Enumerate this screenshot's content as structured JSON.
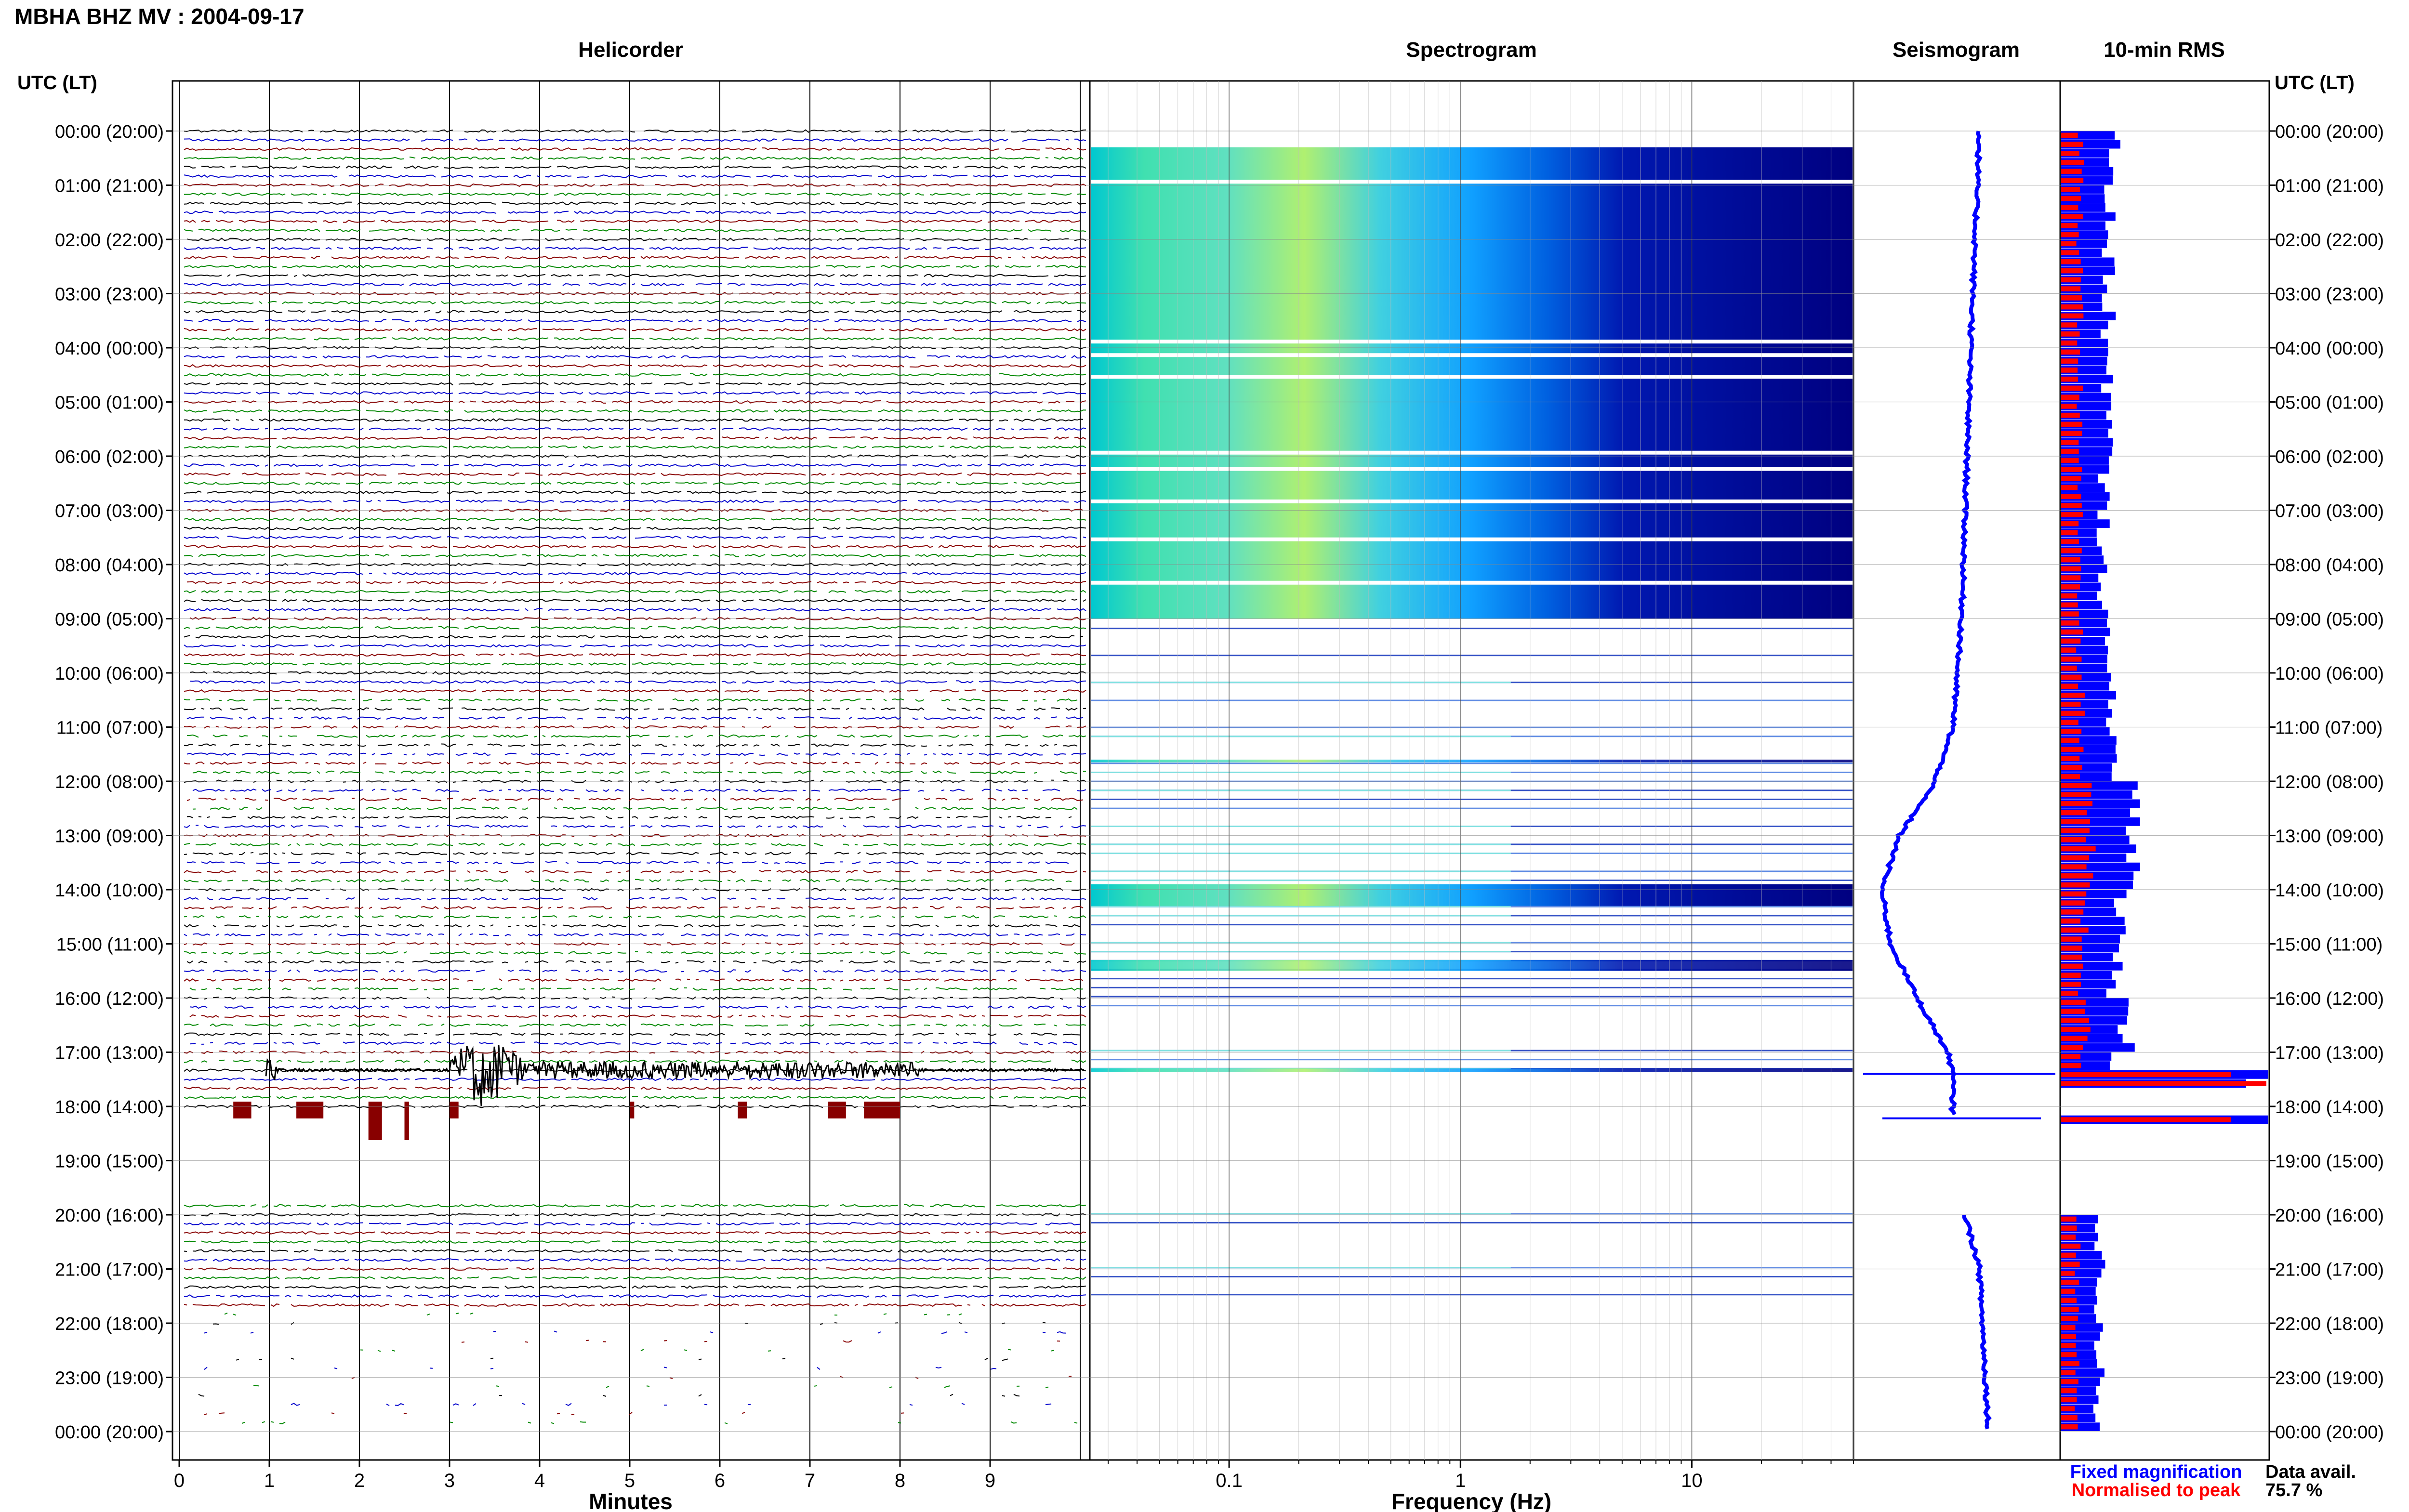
{
  "header": {
    "title": "MBHA BHZ MV : 2004-09-17",
    "axis_label_left": "UTC (LT)",
    "axis_label_right": "UTC (LT)"
  },
  "panels": {
    "helicorder": "Helicorder",
    "spectrogram": "Spectrogram",
    "seismogram": "Seismogram",
    "rms": "10-min RMS"
  },
  "time_labels": [
    "00:00 (20:00)",
    "01:00 (21:00)",
    "02:00 (22:00)",
    "03:00 (23:00)",
    "04:00 (00:00)",
    "05:00 (01:00)",
    "06:00 (02:00)",
    "07:00 (03:00)",
    "08:00 (04:00)",
    "09:00 (05:00)",
    "10:00 (06:00)",
    "11:00 (07:00)",
    "12:00 (08:00)",
    "13:00 (09:00)",
    "14:00 (10:00)",
    "15:00 (11:00)",
    "16:00 (12:00)",
    "17:00 (13:00)",
    "18:00 (14:00)",
    "19:00 (15:00)",
    "20:00 (16:00)",
    "21:00 (17:00)",
    "22:00 (18:00)",
    "23:00 (19:00)",
    "00:00 (20:00)"
  ],
  "helicorder_axis": {
    "xlabel": "Minutes",
    "ticks": [
      "0",
      "1",
      "2",
      "3",
      "4",
      "5",
      "6",
      "7",
      "8",
      "9"
    ]
  },
  "spectrogram_axis": {
    "xlabel": "Frequency (Hz)",
    "ticks": [
      "0.1",
      "1",
      "10"
    ]
  },
  "legend": {
    "fixed": "Fixed magnification",
    "normalised": "Normalised to peak",
    "avail_label": "Data avail.",
    "avail_value": "75.7 %"
  },
  "colors": {
    "trace_cycle": [
      "#000000",
      "#0000cc",
      "#880000",
      "#008800"
    ],
    "fixed": "#0000ff",
    "normalised": "#ff0000"
  },
  "chart_data": [
    {
      "type": "line",
      "title": "Helicorder",
      "xlabel": "Minutes",
      "xlim": [
        0,
        10
      ],
      "rows": 144,
      "row_duration_min": 10,
      "event_window_utc": [
        "17:20",
        "18:10"
      ],
      "gap_window_utc": [
        "18:10",
        "19:50"
      ]
    },
    {
      "type": "heatmap",
      "title": "Spectrogram",
      "xlabel": "Frequency (Hz)",
      "x_scale": "log",
      "xlim": [
        0.025,
        50
      ],
      "dense_data_hours_utc": [
        [
          0.3,
          9.0
        ],
        [
          13.9,
          14.3
        ]
      ]
    },
    {
      "type": "line",
      "title": "Seismogram",
      "description_series": "long-period trend",
      "points": [
        [
          0.0,
          0.6
        ],
        [
          4.0,
          0.55
        ],
        [
          9.0,
          0.5
        ],
        [
          11.0,
          0.45
        ],
        [
          12.0,
          0.35
        ],
        [
          13.0,
          0.15
        ],
        [
          14.0,
          0.05
        ],
        [
          15.0,
          0.1
        ],
        [
          16.0,
          0.25
        ],
        [
          17.0,
          0.42
        ],
        [
          17.35,
          0.45
        ],
        [
          18.1,
          0.45
        ],
        [
          20.0,
          0.52
        ],
        [
          21.0,
          0.6
        ],
        [
          24.0,
          0.65
        ]
      ]
    },
    {
      "type": "bar",
      "title": "10-min RMS",
      "series": [
        {
          "name": "Fixed magnification",
          "color": "#0000ff"
        },
        {
          "name": "Normalised to peak",
          "color": "#ff0000"
        }
      ],
      "hours_utc": [
        0,
        1,
        2,
        3,
        4,
        5,
        6,
        7,
        8,
        9,
        10,
        11,
        12,
        13,
        14,
        15,
        16,
        17,
        17.33,
        18.0,
        20,
        21,
        22,
        23
      ],
      "fixed_relative": [
        0.25,
        0.22,
        0.22,
        0.22,
        0.22,
        0.22,
        0.2,
        0.2,
        0.2,
        0.2,
        0.25,
        0.25,
        0.32,
        0.35,
        0.28,
        0.25,
        0.3,
        0.25,
        1.0,
        1.0,
        0.18,
        0.18,
        0.18,
        0.18
      ],
      "normalised_relative": [
        0.1,
        0.09,
        0.09,
        0.09,
        0.09,
        0.09,
        0.09,
        0.09,
        0.09,
        0.09,
        0.1,
        0.1,
        0.13,
        0.14,
        0.11,
        0.1,
        0.12,
        0.1,
        0.85,
        0.9,
        0.08,
        0.08,
        0.08,
        0.08
      ]
    }
  ]
}
